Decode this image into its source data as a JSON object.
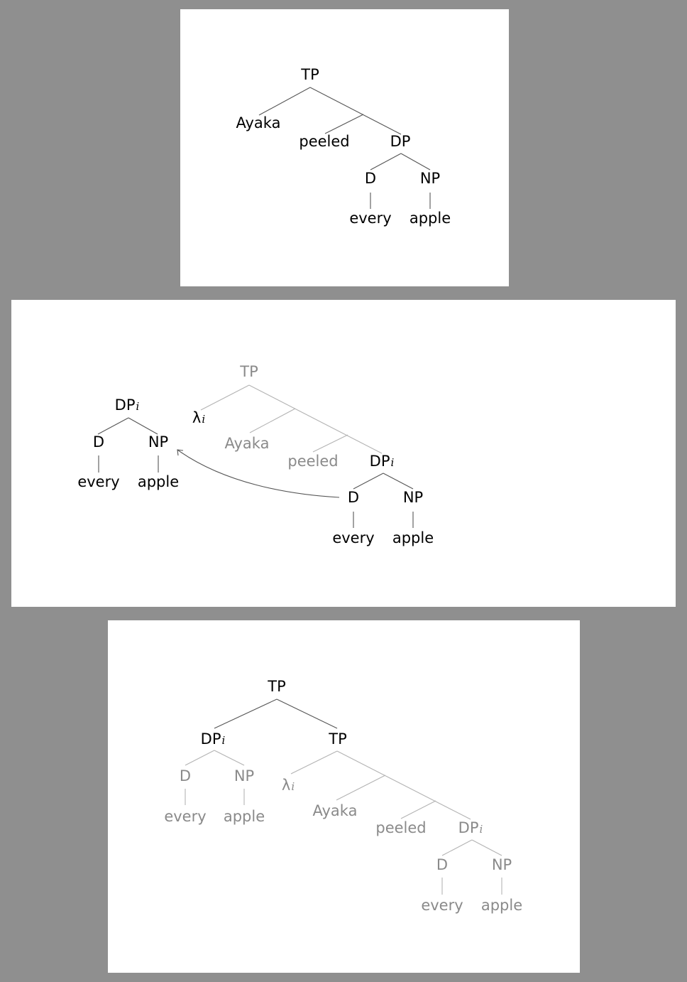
{
  "slide1": {
    "tp": "TP",
    "ayaka": "Ayaka",
    "peeled": "peeled",
    "dp": "DP",
    "d": "D",
    "np": "NP",
    "every": "every",
    "apple": "apple"
  },
  "slide2": {
    "moved": {
      "dp": "DP",
      "idx": "i",
      "d": "D",
      "np": "NP",
      "every": "every",
      "apple": "apple"
    },
    "tree": {
      "tp": "TP",
      "lambda": "λ",
      "lambda_idx": "i",
      "ayaka": "Ayaka",
      "peeled": "peeled",
      "dp": "DP",
      "dp_idx": "i",
      "d": "D",
      "np": "NP",
      "every": "every",
      "apple": "apple"
    }
  },
  "slide3": {
    "tp_root": "TP",
    "dp": "DP",
    "dp_idx": "i",
    "tp_inner": "TP",
    "d1": "D",
    "np1": "NP",
    "every1": "every",
    "apple1": "apple",
    "lambda": "λ",
    "lambda_idx": "i",
    "ayaka": "Ayaka",
    "peeled": "peeled",
    "dp2": "DP",
    "dp2_idx": "i",
    "d2": "D",
    "np2": "NP",
    "every2": "every",
    "apple2": "apple"
  }
}
